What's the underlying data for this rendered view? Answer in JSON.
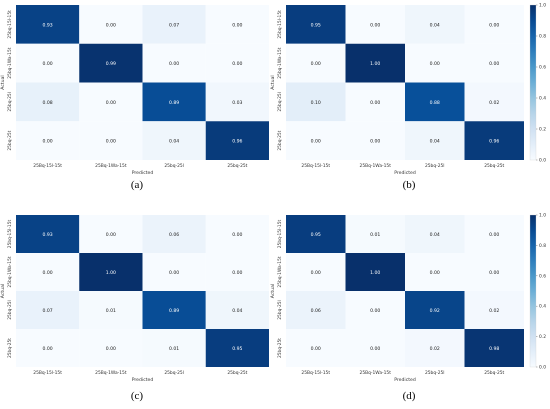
{
  "chart_data": [
    {
      "type": "heatmap",
      "panel_label": "(a)",
      "x_categories": [
        "25Bq-15l-15t",
        "25Bq-1Wa-15t",
        "25bq-25l",
        "25bq-25t"
      ],
      "y_categories": [
        "25bq-15l-15t",
        "25bq-1Wa-15t",
        "25bq-25l",
        "25bq-25t"
      ],
      "xlabel": "Predicted",
      "ylabel": "Actual",
      "values": [
        [
          0.93,
          0.0,
          0.07,
          0.0
        ],
        [
          0.0,
          0.99,
          0.0,
          0.0
        ],
        [
          0.08,
          0.0,
          0.89,
          0.03
        ],
        [
          0.0,
          0.0,
          0.04,
          0.96
        ]
      ],
      "colorbar": null
    },
    {
      "type": "heatmap",
      "panel_label": "(b)",
      "x_categories": [
        "25Bq-15l-15t",
        "25Bq-1Wa-15t",
        "25bq-25l",
        "25bq-25t"
      ],
      "y_categories": [
        "25bq-15l-15t",
        "25bq-1Wa-15t",
        "25bq-25l",
        "25bq-25t"
      ],
      "xlabel": "Predicted",
      "ylabel": "Actual",
      "values": [
        [
          0.95,
          0.0,
          0.04,
          0.0
        ],
        [
          0.0,
          1.0,
          0.0,
          0.0
        ],
        [
          0.1,
          0.0,
          0.88,
          0.02
        ],
        [
          0.0,
          0.0,
          0.04,
          0.96
        ]
      ],
      "colorbar": {
        "min": 0.0,
        "max": 1.0,
        "ticks": [
          "0.0",
          "0.2",
          "0.4",
          "0.6",
          "0.8",
          "1.0"
        ]
      }
    },
    {
      "type": "heatmap",
      "panel_label": "(c)",
      "x_categories": [
        "25Bq-15l-15t",
        "25Bq-1Wa-15t",
        "25bq-25l",
        "25bq-25t"
      ],
      "y_categories": [
        "25bq-15l-15t",
        "25bq-1Wa-15t",
        "25bq-25l",
        "25bq-25t"
      ],
      "xlabel": "Predicted",
      "ylabel": "Actual",
      "values": [
        [
          0.93,
          0.0,
          0.06,
          0.0
        ],
        [
          0.0,
          1.0,
          0.0,
          0.0
        ],
        [
          0.07,
          0.01,
          0.89,
          0.04
        ],
        [
          0.0,
          0.0,
          0.01,
          0.95
        ]
      ],
      "colorbar": null
    },
    {
      "type": "heatmap",
      "panel_label": "(d)",
      "x_categories": [
        "25Bq-15l-15t",
        "25Bq-1Wa-15t",
        "25bq-25l",
        "25bq-25t"
      ],
      "y_categories": [
        "25bq-15l-15t",
        "25bq-1Wa-15t",
        "25bq-25l",
        "25bq-25t"
      ],
      "xlabel": "Predicted",
      "ylabel": "Actual",
      "values": [
        [
          0.95,
          0.01,
          0.04,
          0.0
        ],
        [
          0.0,
          1.0,
          0.0,
          0.0
        ],
        [
          0.06,
          0.0,
          0.92,
          0.02
        ],
        [
          0.0,
          0.0,
          0.02,
          0.98
        ]
      ],
      "colorbar": {
        "min": 0.0,
        "max": 1.0,
        "ticks": [
          "0.0",
          "0.2",
          "0.4",
          "0.6",
          "0.8",
          "1.0"
        ]
      }
    }
  ],
  "colors": {
    "low": "#f7fbff",
    "high": "#08306b"
  }
}
